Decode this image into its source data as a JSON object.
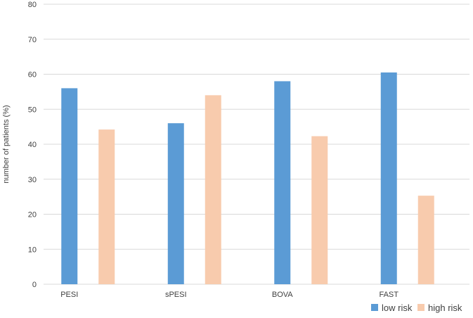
{
  "chart_data": {
    "type": "bar",
    "categories": [
      "PESI",
      "sPESI",
      "BOVA",
      "FAST"
    ],
    "series": [
      {
        "name": "low risk",
        "values": [
          56,
          46,
          58,
          60.5
        ],
        "color": "#5b9bd5"
      },
      {
        "name": "high risk",
        "values": [
          44.2,
          54,
          42.3,
          25.3
        ],
        "color": "#f8cbad"
      }
    ],
    "ylabel": "number of patients (%)",
    "xlabel": "",
    "title": "",
    "ylim": [
      0,
      80
    ],
    "yticks": [
      0,
      10,
      20,
      30,
      40,
      50,
      60,
      70,
      80
    ],
    "grid": true,
    "legend_position": "bottom-right"
  }
}
